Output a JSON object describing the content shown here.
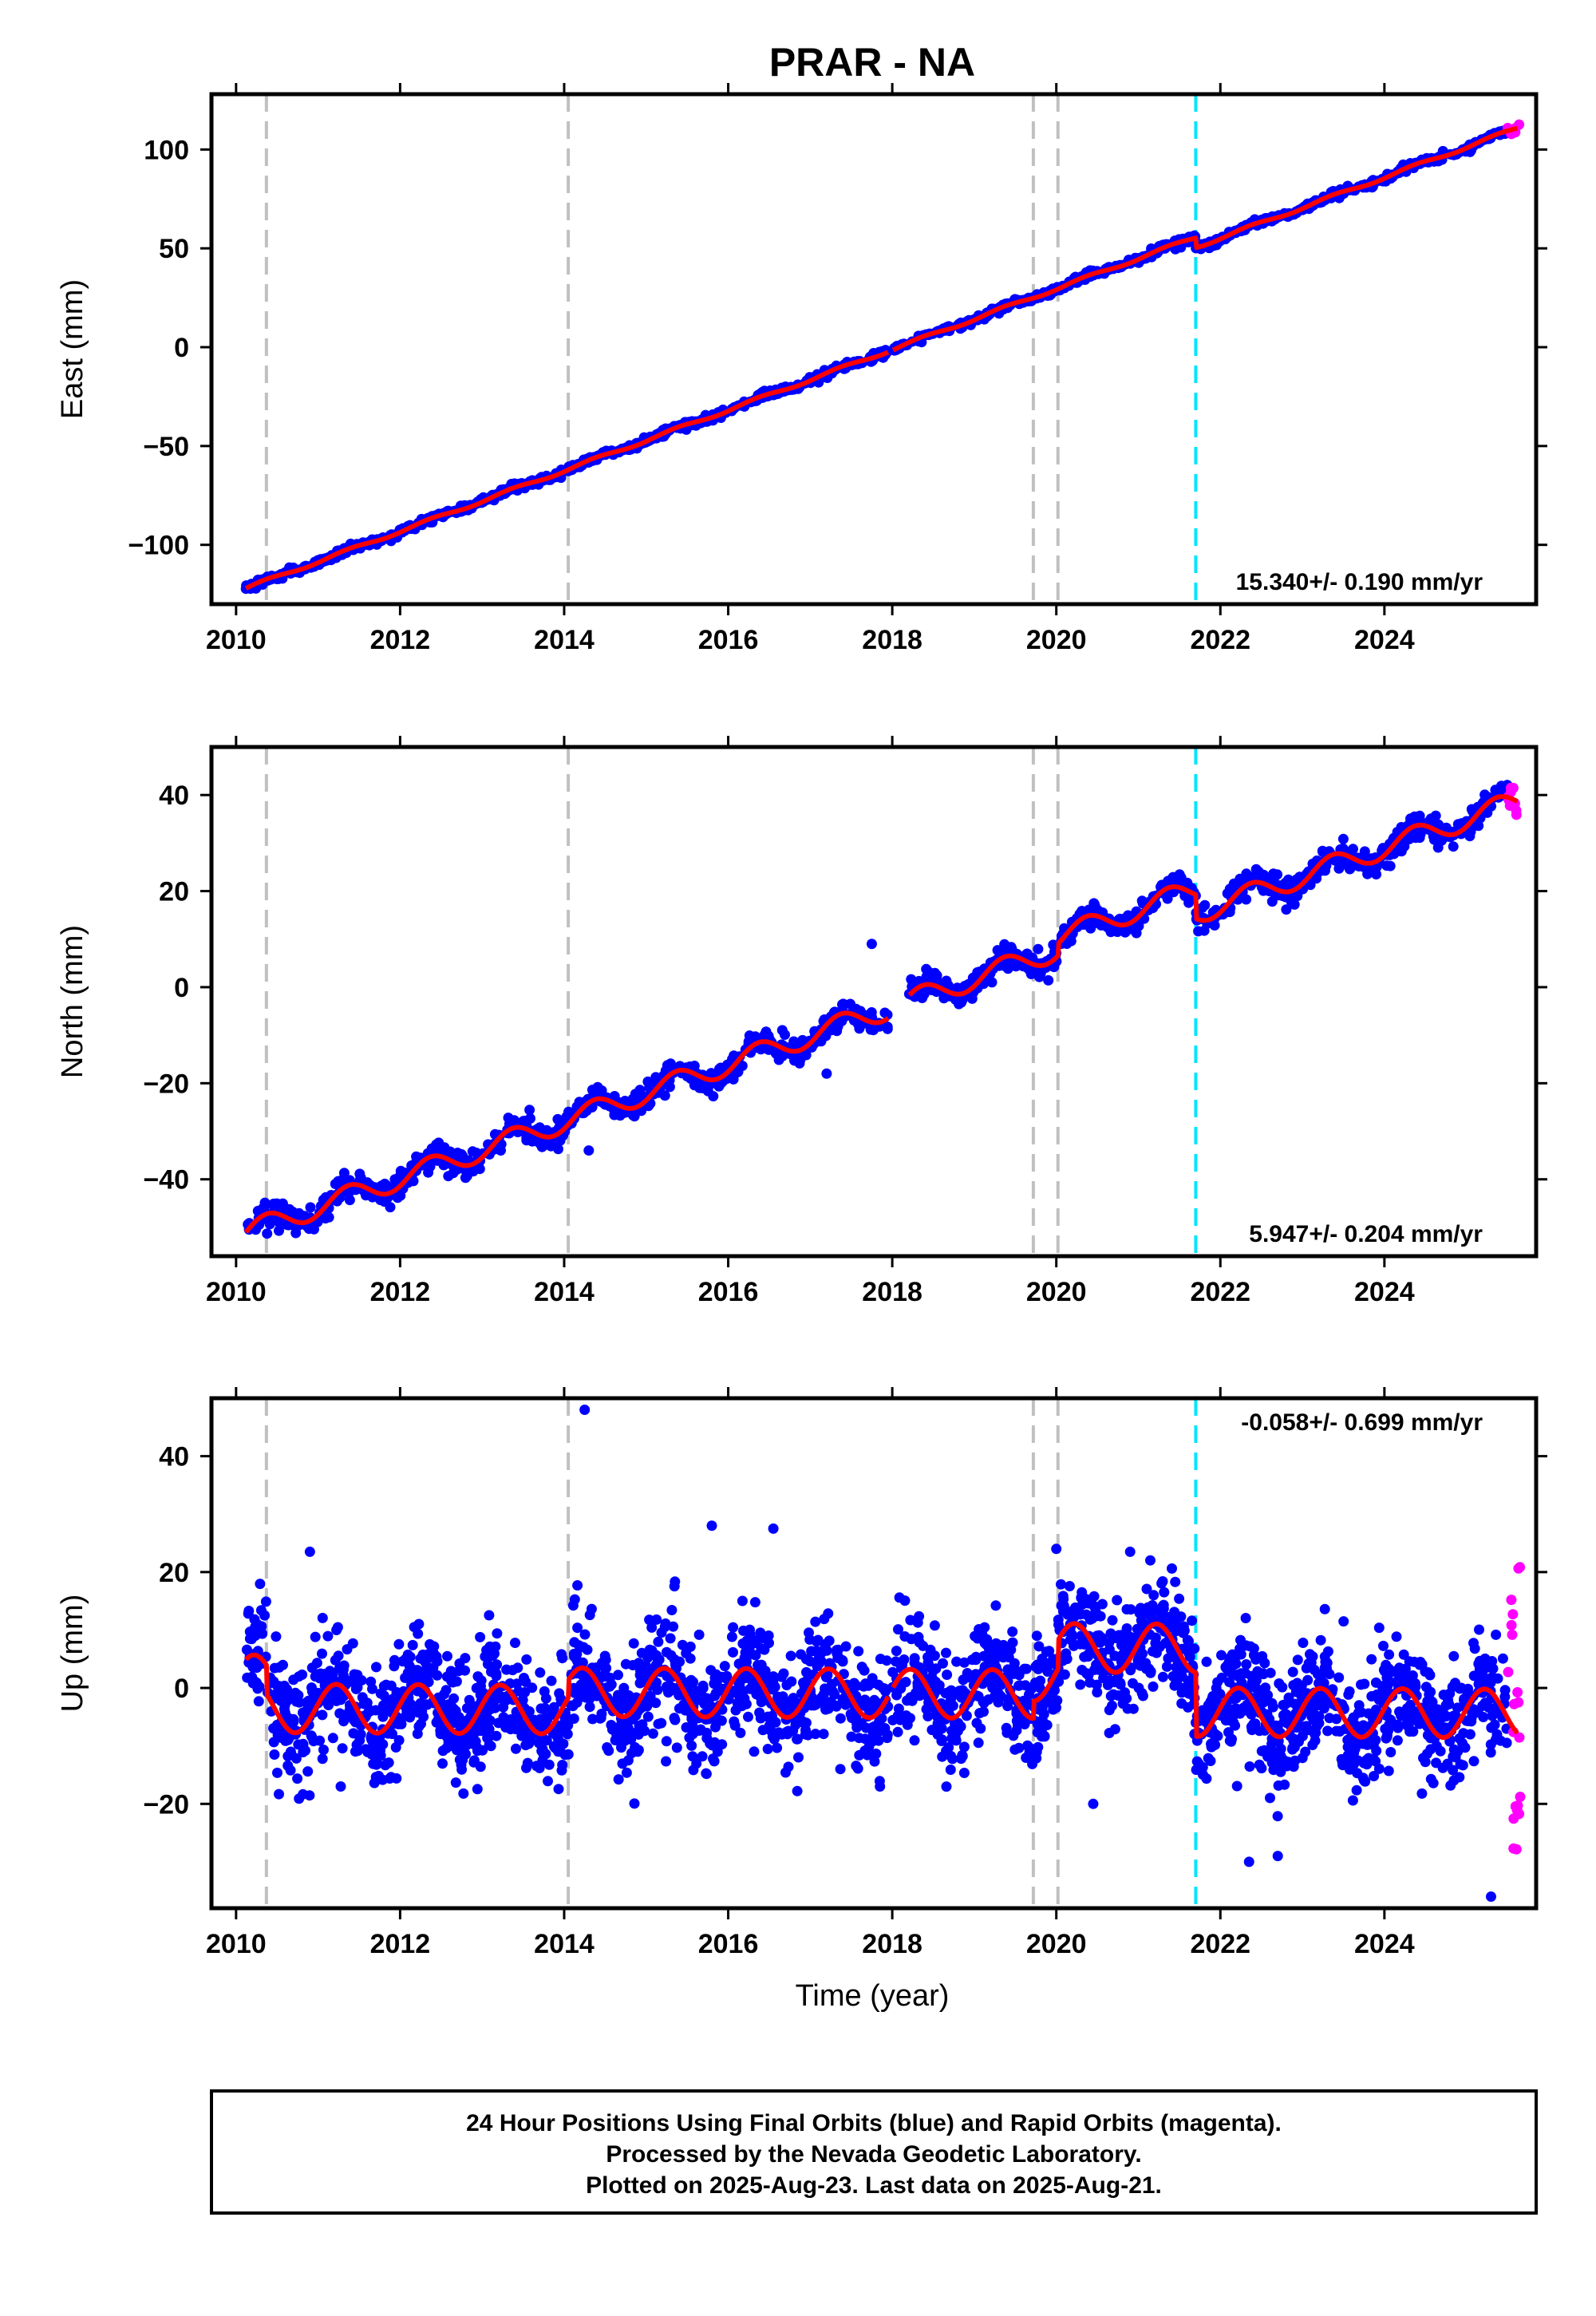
{
  "title": "PRAR - NA",
  "xlabel": "Time (year)",
  "footer": {
    "line1": "24 Hour Positions Using Final Orbits (blue) and Rapid Orbits (magenta).",
    "line2": "Processed by the Nevada Geodetic Laboratory.",
    "line3": "Plotted on 2025-Aug-23. Last data on 2025-Aug-21."
  },
  "colors": {
    "final": "#0000ff",
    "rapid": "#ff00ff",
    "model": "#ff0000",
    "event_gray": "#c0c0c0",
    "event_cyan": "#00e5ff"
  },
  "chart_data": [
    {
      "type": "scatter",
      "panel": "east",
      "ylabel": "East (mm)",
      "xlim": [
        2009.7,
        2025.85
      ],
      "ylim": [
        -130,
        128
      ],
      "xticks": [
        2010,
        2012,
        2014,
        2016,
        2018,
        2020,
        2022,
        2024
      ],
      "yticks": [
        -100,
        -50,
        0,
        50,
        100
      ],
      "tick_labels": [
        "−100",
        "−50",
        "0",
        "50",
        "100"
      ],
      "rate_text": "15.340+/- 0.190 mm/yr",
      "rate_position": "bottom-right",
      "vlines_gray": [
        2010.37,
        2014.05,
        2019.72,
        2020.02
      ],
      "vlines_cyan": [
        2021.7
      ],
      "model": {
        "start": 2010.12,
        "end": 2025.62,
        "value_at_start": -122,
        "rate": 15.34,
        "annual_amp": 0.8,
        "annual_phase": 0.0,
        "offsets": [
          {
            "t": 2021.7,
            "d": -5
          }
        ]
      },
      "gaps": [
        [
          2017.95,
          2018.0
        ]
      ],
      "scatter": 0.9,
      "n_points": 1300,
      "outliers": [],
      "rapid": {
        "start": 2025.5,
        "end": 2025.65,
        "count": 10
      },
      "series": [
        {
          "name": "Final Orbits (blue)"
        },
        {
          "name": "Rapid Orbits (magenta)"
        }
      ]
    },
    {
      "type": "scatter",
      "panel": "north",
      "ylabel": "North (mm)",
      "xlim": [
        2009.7,
        2025.85
      ],
      "ylim": [
        -56,
        50
      ],
      "xticks": [
        2010,
        2012,
        2014,
        2016,
        2018,
        2020,
        2022,
        2024
      ],
      "yticks": [
        -40,
        -20,
        0,
        20,
        40
      ],
      "tick_labels": [
        "−40",
        "−20",
        "0",
        "20",
        "40"
      ],
      "rate_text": "5.947+/- 0.204 mm/yr",
      "rate_position": "bottom-right",
      "vlines_gray": [
        2010.37,
        2014.05,
        2019.72,
        2020.02
      ],
      "vlines_cyan": [
        2021.7
      ],
      "model": {
        "start": 2010.12,
        "end": 2025.62,
        "value_at_start": -51,
        "rate": 5.947,
        "annual_amp": 2.3,
        "annual_phase": 0.0,
        "offsets": [
          {
            "t": 2020.02,
            "d": 2.5
          },
          {
            "t": 2021.7,
            "d": -5
          }
        ]
      },
      "gaps": [
        [
          2017.95,
          2018.2
        ]
      ],
      "scatter": 1.3,
      "n_points": 1500,
      "outliers": [
        [
          2017.2,
          -18
        ],
        [
          2017.75,
          9
        ],
        [
          2014.3,
          -34
        ]
      ],
      "rapid": {
        "start": 2025.5,
        "end": 2025.65,
        "count": 12
      },
      "series": [
        {
          "name": "Final Orbits (blue)"
        },
        {
          "name": "Rapid Orbits (magenta)"
        }
      ]
    },
    {
      "type": "scatter",
      "panel": "up",
      "ylabel": "Up (mm)",
      "xlim": [
        2009.7,
        2025.85
      ],
      "ylim": [
        -38,
        50
      ],
      "xticks": [
        2010,
        2012,
        2014,
        2016,
        2018,
        2020,
        2022,
        2024
      ],
      "yticks": [
        -20,
        0,
        20,
        40
      ],
      "tick_labels": [
        "−20",
        "0",
        "20",
        "40"
      ],
      "rate_text": "-0.058+/- 0.699 mm/yr",
      "rate_position": "top-right",
      "vlines_gray": [
        2010.37,
        2014.05,
        2019.72,
        2020.02
      ],
      "vlines_cyan": [
        2021.7
      ],
      "model": {
        "start": 2010.12,
        "end": 2025.62,
        "value_at_start": 1.5,
        "rate": -0.058,
        "annual_amp": 4.2,
        "annual_phase": 0.15,
        "offsets": [
          {
            "t": 2010.37,
            "d": -5
          },
          {
            "t": 2014.05,
            "d": 3
          },
          {
            "t": 2019.72,
            "d": 3
          },
          {
            "t": 2020.02,
            "d": 5
          },
          {
            "t": 2021.7,
            "d": -11
          }
        ]
      },
      "gaps": [
        [
          2017.95,
          2018.0
        ]
      ],
      "scatter": 5,
      "n_points": 2600,
      "outliers": [
        [
          2014.25,
          48
        ],
        [
          2015.8,
          28
        ],
        [
          2016.55,
          27.5
        ],
        [
          2020.0,
          24
        ],
        [
          2020.9,
          23.5
        ],
        [
          2010.9,
          23.5
        ],
        [
          2017.85,
          -17
        ],
        [
          2020.45,
          -20
        ],
        [
          2022.7,
          -29
        ],
        [
          2025.3,
          -36
        ],
        [
          2022.35,
          -30
        ]
      ],
      "rapid": {
        "start": 2025.5,
        "end": 2025.66,
        "count": 20,
        "ymin": -28,
        "ymax": 21
      },
      "series": [
        {
          "name": "Final Orbits (blue)"
        },
        {
          "name": "Rapid Orbits (magenta)"
        }
      ]
    }
  ]
}
